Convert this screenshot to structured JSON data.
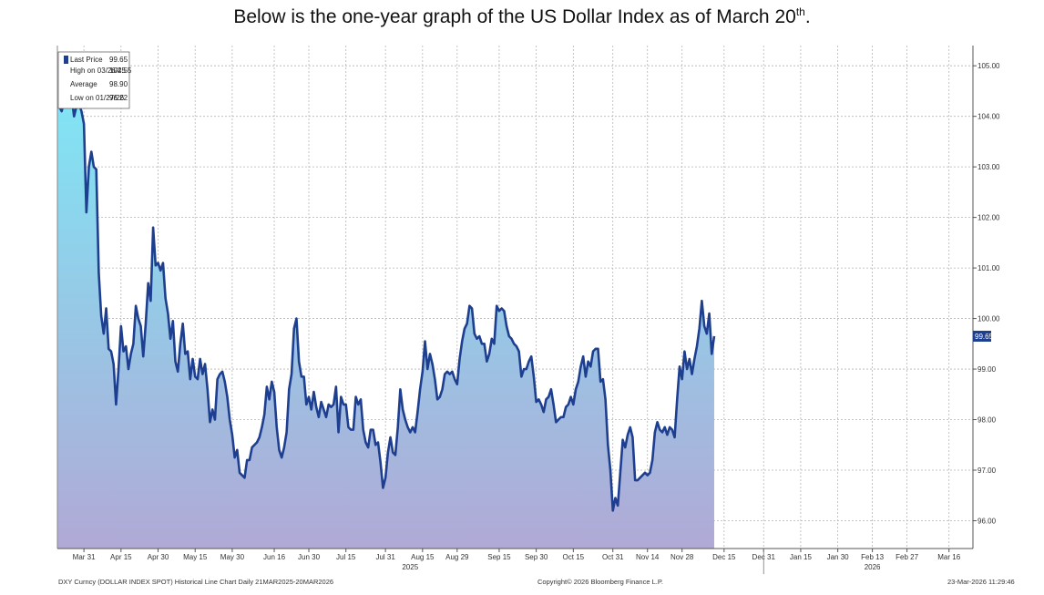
{
  "heading": {
    "text": "Below is the one-year graph of the US Dollar Index as of March 20",
    "sup": "th",
    "end": "."
  },
  "legend": {
    "rows": [
      {
        "label": "Last Price",
        "value": "99.65"
      },
      {
        "label": "High on 03/26/25",
        "value": "104.55"
      },
      {
        "label": "Average",
        "value": "98.90"
      },
      {
        "label": "Low on 01/27/26",
        "value": "96.22"
      }
    ]
  },
  "last_price_badge": "99.65",
  "footer": {
    "left": "DXY Curncy (DOLLAR INDEX SPOT) Historical Line Chart Daily 21MAR2025-20MAR2026",
    "center": "Copyright© 2026 Bloomberg Finance L.P.",
    "right": "23-Mar-2026 11:29:46"
  },
  "colors": {
    "line": "#1e3f8f",
    "fill_top": "#7fe6f5",
    "fill_bottom": "#b0a9d6",
    "grid": "#b5b5b5",
    "badge": "#1e3f8f"
  },
  "chart_data": {
    "type": "area",
    "title": "",
    "xlabel": "",
    "ylabel": "",
    "ylim": [
      95.45,
      105.4
    ],
    "grid": true,
    "legend_position": "top-left",
    "y_ticks": [
      "105.00",
      "104.00",
      "103.00",
      "102.00",
      "101.00",
      "100.00",
      "99.00",
      "98.00",
      "97.00",
      "96.00"
    ],
    "x_ticks": [
      {
        "label": "Mar 31",
        "day": 10
      },
      {
        "label": "Apr 15",
        "day": 25
      },
      {
        "label": "Apr 30",
        "day": 40
      },
      {
        "label": "May 15",
        "day": 55
      },
      {
        "label": "May 30",
        "day": 70
      },
      {
        "label": "Jun 16",
        "day": 87
      },
      {
        "label": "Jun 30",
        "day": 101
      },
      {
        "label": "Jul 15",
        "day": 116
      },
      {
        "label": "Jul 31",
        "day": 132
      },
      {
        "label": "Aug 15",
        "day": 147
      },
      {
        "label": "Aug 29",
        "day": 161
      },
      {
        "label": "Sep 15",
        "day": 178
      },
      {
        "label": "Sep 30",
        "day": 193
      },
      {
        "label": "Oct 15",
        "day": 208
      },
      {
        "label": "Oct 31",
        "day": 224
      },
      {
        "label": "Nov 14",
        "day": 238
      },
      {
        "label": "Nov 28",
        "day": 252
      },
      {
        "label": "Dec 15",
        "day": 269
      },
      {
        "label": "Dec 31",
        "day": 285
      },
      {
        "label": "Jan 15",
        "day": 300
      },
      {
        "label": "Jan 30",
        "day": 315
      },
      {
        "label": "Feb 13",
        "day": 329
      },
      {
        "label": "Feb 27",
        "day": 343
      },
      {
        "label": "Mar 16",
        "day": 360
      }
    ],
    "year_labels": [
      {
        "label": "2025",
        "day": 142
      },
      {
        "label": "2026",
        "day": 329
      }
    ],
    "year_divider_day": 285,
    "x_range": [
      0,
      366
    ],
    "series": [
      {
        "points": [
          [
            0,
            104.2
          ],
          [
            1,
            104.1
          ],
          [
            2,
            104.3
          ],
          [
            3,
            104.2
          ],
          [
            4,
            104.55
          ],
          [
            5,
            104.4
          ],
          [
            6,
            104.0
          ],
          [
            7,
            104.2
          ],
          [
            8,
            104.25
          ],
          [
            9,
            104.1
          ],
          [
            10,
            103.85
          ],
          [
            11,
            102.1
          ],
          [
            12,
            103.0
          ],
          [
            13,
            103.3
          ],
          [
            14,
            103.0
          ],
          [
            15,
            102.95
          ],
          [
            16,
            100.9
          ],
          [
            17,
            100.05
          ],
          [
            18,
            99.7
          ],
          [
            19,
            100.2
          ],
          [
            20,
            99.4
          ],
          [
            21,
            99.35
          ],
          [
            22,
            99.1
          ],
          [
            23,
            98.3
          ],
          [
            24,
            99.0
          ],
          [
            25,
            99.85
          ],
          [
            26,
            99.35
          ],
          [
            27,
            99.45
          ],
          [
            28,
            99.0
          ],
          [
            29,
            99.3
          ],
          [
            30,
            99.5
          ],
          [
            31,
            100.25
          ],
          [
            32,
            100.0
          ],
          [
            33,
            99.85
          ],
          [
            34,
            99.25
          ],
          [
            35,
            99.9
          ],
          [
            36,
            100.7
          ],
          [
            37,
            100.35
          ],
          [
            38,
            101.8
          ],
          [
            39,
            101.05
          ],
          [
            40,
            101.1
          ],
          [
            41,
            100.95
          ],
          [
            42,
            101.1
          ],
          [
            43,
            100.4
          ],
          [
            44,
            100.1
          ],
          [
            45,
            99.6
          ],
          [
            46,
            99.95
          ],
          [
            47,
            99.15
          ],
          [
            48,
            98.95
          ],
          [
            49,
            99.5
          ],
          [
            50,
            99.9
          ],
          [
            51,
            99.3
          ],
          [
            52,
            99.35
          ],
          [
            53,
            98.8
          ],
          [
            54,
            99.2
          ],
          [
            55,
            98.85
          ],
          [
            56,
            98.8
          ],
          [
            57,
            99.2
          ],
          [
            58,
            98.9
          ],
          [
            59,
            99.1
          ],
          [
            60,
            98.6
          ],
          [
            61,
            97.95
          ],
          [
            62,
            98.2
          ],
          [
            63,
            98.0
          ],
          [
            64,
            98.8
          ],
          [
            65,
            98.9
          ],
          [
            66,
            98.95
          ],
          [
            67,
            98.75
          ],
          [
            68,
            98.45
          ],
          [
            69,
            98.0
          ],
          [
            70,
            97.7
          ],
          [
            71,
            97.25
          ],
          [
            72,
            97.4
          ],
          [
            73,
            96.95
          ],
          [
            74,
            96.9
          ],
          [
            75,
            96.85
          ],
          [
            76,
            97.2
          ],
          [
            77,
            97.2
          ],
          [
            78,
            97.45
          ],
          [
            79,
            97.5
          ],
          [
            80,
            97.55
          ],
          [
            81,
            97.65
          ],
          [
            82,
            97.85
          ],
          [
            83,
            98.1
          ],
          [
            84,
            98.65
          ],
          [
            85,
            98.4
          ],
          [
            86,
            98.75
          ],
          [
            87,
            98.55
          ],
          [
            88,
            97.85
          ],
          [
            89,
            97.4
          ],
          [
            90,
            97.25
          ],
          [
            91,
            97.45
          ],
          [
            92,
            97.75
          ],
          [
            93,
            98.6
          ],
          [
            94,
            98.9
          ],
          [
            95,
            99.8
          ],
          [
            96,
            100.0
          ],
          [
            97,
            99.15
          ],
          [
            98,
            98.85
          ],
          [
            99,
            98.85
          ],
          [
            100,
            98.3
          ],
          [
            101,
            98.45
          ],
          [
            102,
            98.2
          ],
          [
            103,
            98.55
          ],
          [
            104,
            98.25
          ],
          [
            105,
            98.05
          ],
          [
            106,
            98.35
          ],
          [
            107,
            98.2
          ],
          [
            108,
            98.05
          ],
          [
            109,
            98.3
          ],
          [
            110,
            98.25
          ],
          [
            111,
            98.3
          ],
          [
            112,
            98.65
          ],
          [
            113,
            97.75
          ],
          [
            114,
            98.45
          ],
          [
            115,
            98.3
          ],
          [
            116,
            98.3
          ],
          [
            117,
            97.85
          ],
          [
            118,
            97.8
          ],
          [
            119,
            97.8
          ],
          [
            120,
            98.45
          ],
          [
            121,
            98.3
          ],
          [
            122,
            98.4
          ],
          [
            123,
            97.8
          ],
          [
            124,
            97.55
          ],
          [
            125,
            97.45
          ],
          [
            126,
            97.8
          ],
          [
            127,
            97.8
          ],
          [
            128,
            97.5
          ],
          [
            129,
            97.55
          ],
          [
            130,
            97.15
          ],
          [
            131,
            96.65
          ],
          [
            132,
            96.85
          ],
          [
            133,
            97.35
          ],
          [
            134,
            97.65
          ],
          [
            135,
            97.35
          ],
          [
            136,
            97.3
          ],
          [
            137,
            97.85
          ],
          [
            138,
            98.6
          ],
          [
            139,
            98.2
          ],
          [
            140,
            98.0
          ],
          [
            141,
            97.85
          ],
          [
            142,
            97.75
          ],
          [
            143,
            97.85
          ],
          [
            144,
            97.75
          ],
          [
            145,
            98.15
          ],
          [
            146,
            98.6
          ],
          [
            147,
            98.95
          ],
          [
            148,
            99.55
          ],
          [
            149,
            99.0
          ],
          [
            150,
            99.3
          ],
          [
            151,
            99.1
          ],
          [
            152,
            98.8
          ],
          [
            153,
            98.4
          ],
          [
            154,
            98.45
          ],
          [
            155,
            98.6
          ],
          [
            156,
            98.9
          ],
          [
            157,
            98.95
          ],
          [
            158,
            98.9
          ],
          [
            159,
            98.95
          ],
          [
            160,
            98.8
          ],
          [
            161,
            98.7
          ],
          [
            162,
            99.2
          ],
          [
            163,
            99.55
          ],
          [
            164,
            99.8
          ],
          [
            165,
            99.9
          ],
          [
            166,
            100.25
          ],
          [
            167,
            100.2
          ],
          [
            168,
            99.7
          ],
          [
            169,
            99.6
          ],
          [
            170,
            99.65
          ],
          [
            171,
            99.5
          ],
          [
            172,
            99.5
          ],
          [
            173,
            99.15
          ],
          [
            174,
            99.3
          ],
          [
            175,
            99.6
          ],
          [
            176,
            99.5
          ],
          [
            177,
            100.25
          ],
          [
            178,
            100.15
          ],
          [
            179,
            100.2
          ],
          [
            180,
            100.15
          ],
          [
            181,
            99.85
          ],
          [
            182,
            99.65
          ],
          [
            183,
            99.6
          ],
          [
            184,
            99.5
          ],
          [
            185,
            99.45
          ],
          [
            186,
            99.35
          ],
          [
            187,
            98.85
          ],
          [
            188,
            99.0
          ],
          [
            189,
            99.0
          ],
          [
            190,
            99.15
          ],
          [
            191,
            99.25
          ],
          [
            192,
            98.85
          ],
          [
            193,
            98.35
          ],
          [
            194,
            98.4
          ],
          [
            195,
            98.3
          ],
          [
            196,
            98.15
          ],
          [
            197,
            98.4
          ],
          [
            198,
            98.45
          ],
          [
            199,
            98.6
          ],
          [
            200,
            98.3
          ],
          [
            201,
            97.95
          ],
          [
            202,
            98.0
          ],
          [
            203,
            98.05
          ],
          [
            204,
            98.05
          ],
          [
            205,
            98.25
          ],
          [
            206,
            98.3
          ],
          [
            207,
            98.45
          ],
          [
            208,
            98.3
          ],
          [
            209,
            98.6
          ],
          [
            210,
            98.75
          ],
          [
            211,
            99.05
          ],
          [
            212,
            99.25
          ],
          [
            213,
            98.85
          ],
          [
            214,
            99.15
          ],
          [
            215,
            99.05
          ],
          [
            216,
            99.35
          ],
          [
            217,
            99.4
          ],
          [
            218,
            99.4
          ],
          [
            219,
            98.75
          ],
          [
            220,
            98.8
          ],
          [
            221,
            98.4
          ],
          [
            222,
            97.5
          ],
          [
            223,
            97.0
          ],
          [
            224,
            96.2
          ],
          [
            225,
            96.45
          ],
          [
            226,
            96.3
          ],
          [
            227,
            96.95
          ],
          [
            228,
            97.6
          ],
          [
            229,
            97.45
          ],
          [
            230,
            97.7
          ],
          [
            231,
            97.85
          ],
          [
            232,
            97.65
          ],
          [
            233,
            96.8
          ],
          [
            234,
            96.8
          ],
          [
            235,
            96.85
          ],
          [
            236,
            96.9
          ],
          [
            237,
            96.95
          ],
          [
            238,
            96.9
          ],
          [
            239,
            96.95
          ],
          [
            240,
            97.2
          ],
          [
            241,
            97.75
          ],
          [
            242,
            97.95
          ],
          [
            243,
            97.8
          ],
          [
            244,
            97.75
          ],
          [
            245,
            97.85
          ],
          [
            246,
            97.7
          ],
          [
            247,
            97.85
          ],
          [
            248,
            97.8
          ],
          [
            249,
            97.65
          ],
          [
            250,
            98.4
          ],
          [
            251,
            99.05
          ],
          [
            252,
            98.8
          ],
          [
            253,
            99.35
          ],
          [
            254,
            99.0
          ],
          [
            255,
            99.2
          ],
          [
            256,
            98.9
          ],
          [
            257,
            99.2
          ],
          [
            258,
            99.45
          ],
          [
            259,
            99.8
          ],
          [
            260,
            100.35
          ],
          [
            261,
            99.85
          ],
          [
            262,
            99.7
          ],
          [
            263,
            100.1
          ],
          [
            264,
            99.3
          ],
          [
            265,
            99.65
          ]
        ]
      }
    ]
  }
}
